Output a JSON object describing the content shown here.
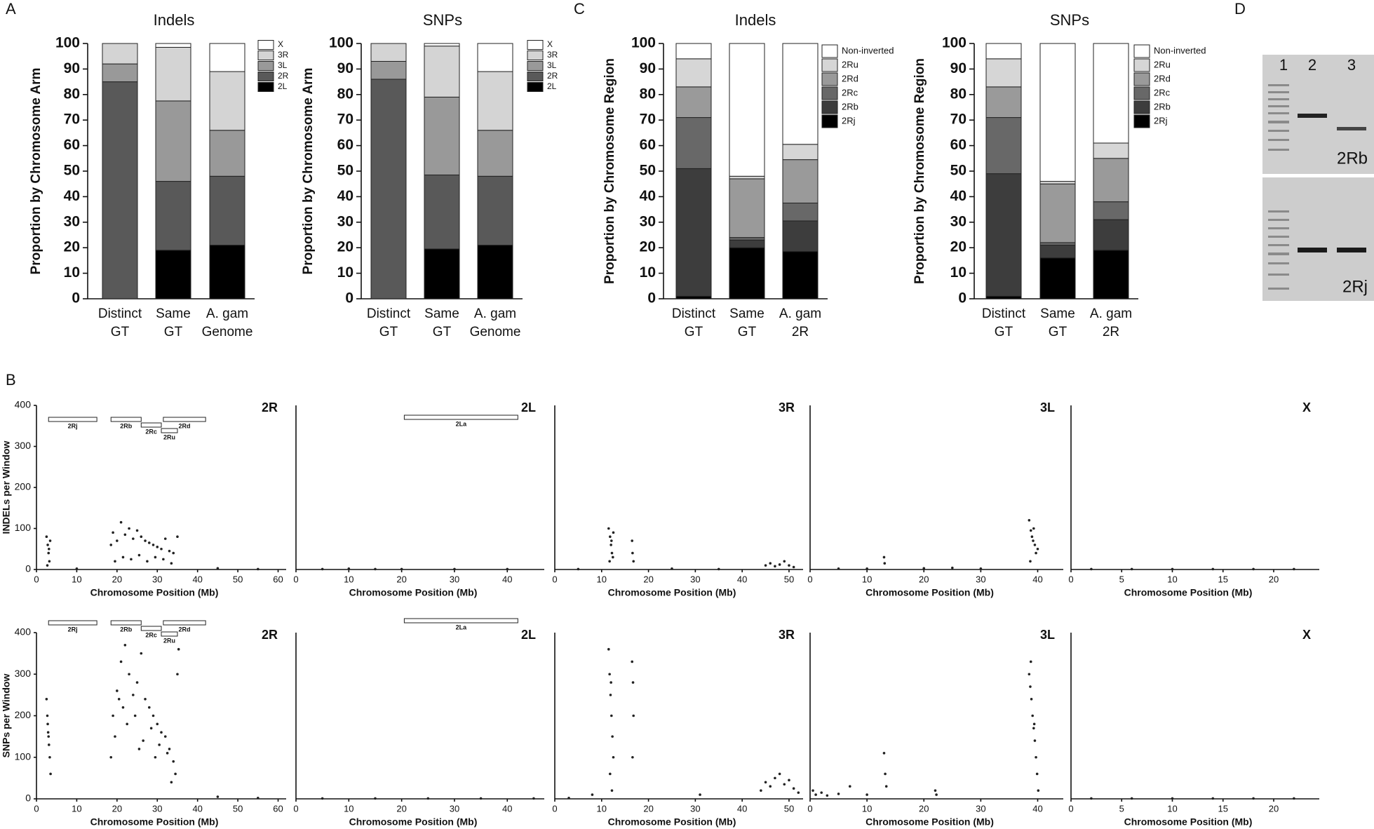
{
  "panel_labels": [
    "A",
    "B",
    "C",
    "D"
  ],
  "gel": {
    "lanes": [
      "1",
      "2",
      "3"
    ],
    "labels": [
      "2Rb",
      "2Rj"
    ]
  },
  "chart_data": [
    {
      "type": "stack",
      "title": "Indels",
      "y_label": "Proportion by Chromosome Arm",
      "ylim": [
        0,
        100
      ],
      "yticks": [
        0,
        10,
        20,
        30,
        40,
        50,
        60,
        70,
        80,
        90,
        100
      ],
      "categories": [
        [
          "Distinct",
          "GT"
        ],
        [
          "Same",
          "GT"
        ],
        [
          "A. gam",
          "Genome"
        ]
      ],
      "series": [
        {
          "name": "2L",
          "color": "#000000",
          "values": [
            0,
            19,
            21
          ]
        },
        {
          "name": "2R",
          "color": "#595959",
          "values": [
            85,
            27,
            27
          ]
        },
        {
          "name": "3L",
          "color": "#999999",
          "values": [
            7,
            31.5,
            18
          ]
        },
        {
          "name": "3R",
          "color": "#d4d4d4",
          "values": [
            8,
            21,
            23
          ]
        },
        {
          "name": "X",
          "color": "#ffffff",
          "values": [
            0,
            1.5,
            11
          ]
        }
      ]
    },
    {
      "type": "stack",
      "title": "SNPs",
      "y_label": "Proportion by Chromosome Arm",
      "ylim": [
        0,
        100
      ],
      "yticks": [
        0,
        10,
        20,
        30,
        40,
        50,
        60,
        70,
        80,
        90,
        100
      ],
      "categories": [
        [
          "Distinct",
          "GT"
        ],
        [
          "Same",
          "GT"
        ],
        [
          "A. gam",
          "Genome"
        ]
      ],
      "series": [
        {
          "name": "2L",
          "color": "#000000",
          "values": [
            0,
            19.5,
            21
          ]
        },
        {
          "name": "2R",
          "color": "#595959",
          "values": [
            86,
            29,
            27
          ]
        },
        {
          "name": "3L",
          "color": "#999999",
          "values": [
            7,
            30.5,
            18
          ]
        },
        {
          "name": "3R",
          "color": "#d4d4d4",
          "values": [
            7,
            20,
            23
          ]
        },
        {
          "name": "X",
          "color": "#ffffff",
          "values": [
            0,
            1,
            11
          ]
        }
      ]
    },
    {
      "type": "stack",
      "title": "Indels",
      "y_label": "Proportion by Chromosome Region",
      "ylim": [
        0,
        100
      ],
      "yticks": [
        0,
        10,
        20,
        30,
        40,
        50,
        60,
        70,
        80,
        90,
        100
      ],
      "categories": [
        [
          "Distinct",
          "GT"
        ],
        [
          "Same",
          "GT"
        ],
        [
          "A. gam",
          "2R"
        ]
      ],
      "series": [
        {
          "name": "2Rj",
          "color": "#000000",
          "values": [
            1,
            20,
            18.5
          ]
        },
        {
          "name": "2Rb",
          "color": "#3d3d3d",
          "values": [
            50,
            3,
            12
          ]
        },
        {
          "name": "2Rc",
          "color": "#686868",
          "values": [
            20,
            1,
            7
          ]
        },
        {
          "name": "2Rd",
          "color": "#9a9a9a",
          "values": [
            12,
            23,
            17
          ]
        },
        {
          "name": "2Ru",
          "color": "#d6d6d6",
          "values": [
            11,
            1,
            6
          ]
        },
        {
          "name": "Non-inverted",
          "color": "#ffffff",
          "values": [
            6,
            52,
            39.5
          ]
        }
      ]
    },
    {
      "type": "stack",
      "title": "SNPs",
      "y_label": "Proportion by Chromosome Region",
      "ylim": [
        0,
        100
      ],
      "yticks": [
        0,
        10,
        20,
        30,
        40,
        50,
        60,
        70,
        80,
        90,
        100
      ],
      "categories": [
        [
          "Distinct",
          "GT"
        ],
        [
          "Same",
          "GT"
        ],
        [
          "A. gam",
          "2R"
        ]
      ],
      "series": [
        {
          "name": "2Rj",
          "color": "#000000",
          "values": [
            1,
            16,
            19
          ]
        },
        {
          "name": "2Rb",
          "color": "#3d3d3d",
          "values": [
            48,
            5,
            12
          ]
        },
        {
          "name": "2Rc",
          "color": "#686868",
          "values": [
            22,
            1,
            7
          ]
        },
        {
          "name": "2Rd",
          "color": "#9a9a9a",
          "values": [
            12,
            23,
            17
          ]
        },
        {
          "name": "2Ru",
          "color": "#d6d6d6",
          "values": [
            11,
            1,
            6
          ]
        },
        {
          "name": "Non-inverted",
          "color": "#ffffff",
          "values": [
            6,
            54,
            39
          ]
        }
      ]
    },
    {
      "type": "scatter",
      "title": "2R",
      "x_label": "Chromosome Position (Mb)",
      "y_label": "INDELs per Window",
      "xlim": [
        0,
        62
      ],
      "xticks": [
        0,
        10,
        20,
        30,
        40,
        50,
        60
      ],
      "ylim": [
        0,
        400
      ],
      "yticks": [
        0,
        100,
        200,
        300,
        400
      ],
      "annotations": [
        {
          "label": "2Rj",
          "start": 3,
          "end": 15
        },
        {
          "label": "2Rb",
          "start": 18.5,
          "end": 26
        },
        {
          "label": "2Rc",
          "start": 26,
          "end": 31
        },
        {
          "label": "2Ru",
          "start": 31,
          "end": 35
        },
        {
          "label": "2Rd",
          "start": 31.5,
          "end": 42
        }
      ],
      "x": [
        2.5,
        2.8,
        3.0,
        3.2,
        3.4,
        2.7,
        3.1,
        18.5,
        19,
        20,
        21,
        22,
        23,
        24,
        25,
        26,
        27,
        28,
        29,
        30,
        31,
        32,
        33,
        34,
        35,
        19.5,
        21.5,
        23.5,
        25.5,
        27.5,
        29.5,
        31.5,
        33.5,
        10,
        45,
        55
      ],
      "values": [
        80,
        60,
        40,
        20,
        70,
        10,
        50,
        60,
        90,
        70,
        115,
        85,
        100,
        75,
        95,
        80,
        70,
        65,
        60,
        55,
        50,
        75,
        45,
        40,
        80,
        20,
        30,
        25,
        35,
        20,
        30,
        25,
        15,
        2,
        3,
        1
      ]
    },
    {
      "type": "scatter",
      "title": "2L",
      "x_label": "Chromosome Position (Mb)",
      "xlim": [
        0,
        47
      ],
      "xticks": [
        0,
        10,
        20,
        30,
        40
      ],
      "ylim": [
        0,
        400
      ],
      "annotations": [
        {
          "label": "2La",
          "start": 20.5,
          "end": 42
        }
      ],
      "x": [
        5,
        10,
        15,
        20,
        30,
        40
      ],
      "values": [
        1,
        2,
        1,
        1,
        1,
        1
      ]
    },
    {
      "type": "scatter",
      "title": "3R",
      "x_label": "Chromosome Position (Mb)",
      "xlim": [
        0,
        53
      ],
      "xticks": [
        0,
        10,
        20,
        30,
        40,
        50
      ],
      "ylim": [
        0,
        400
      ],
      "x": [
        11.5,
        11.8,
        12,
        12.2,
        12.5,
        11.7,
        12.1,
        12.4,
        16.5,
        16.6,
        16.8,
        45,
        46,
        47,
        48,
        49,
        50,
        51,
        5,
        25,
        35
      ],
      "values": [
        100,
        80,
        60,
        40,
        90,
        20,
        70,
        30,
        70,
        40,
        20,
        10,
        15,
        8,
        12,
        20,
        10,
        6,
        1,
        2,
        1
      ]
    },
    {
      "type": "scatter",
      "title": "3L",
      "x_label": "Chromosome Position (Mb)",
      "xlim": [
        0,
        44.5
      ],
      "xticks": [
        0,
        10,
        20,
        30,
        40
      ],
      "ylim": [
        0,
        400
      ],
      "x": [
        13,
        13.1,
        38.5,
        38.8,
        39,
        39.2,
        39.5,
        39.7,
        40,
        38.7,
        39.3,
        5,
        10,
        20,
        25,
        30
      ],
      "values": [
        30,
        15,
        120,
        95,
        80,
        70,
        60,
        40,
        50,
        20,
        100,
        2,
        2,
        3,
        4,
        2
      ]
    },
    {
      "type": "scatter",
      "title": "X",
      "x_label": "Chromosome Position (Mb)",
      "xlim": [
        0,
        24.5
      ],
      "xticks": [
        0,
        5,
        10,
        15,
        20
      ],
      "ylim": [
        0,
        400
      ],
      "x": [
        2,
        6,
        10,
        14,
        18,
        22
      ],
      "values": [
        1,
        1,
        1,
        1,
        1,
        1
      ]
    },
    {
      "type": "scatter",
      "title": "2R",
      "x_label": "Chromosome Position (Mb)",
      "y_label": "SNPs per Window",
      "xlim": [
        0,
        62
      ],
      "xticks": [
        0,
        10,
        20,
        30,
        40,
        50,
        60
      ],
      "ylim": [
        0,
        400
      ],
      "yticks": [
        0,
        100,
        200,
        300,
        400
      ],
      "annotations": [
        {
          "label": "2Rj",
          "start": 3,
          "end": 15
        },
        {
          "label": "2Rb",
          "start": 18.5,
          "end": 26
        },
        {
          "label": "2Rc",
          "start": 26,
          "end": 31
        },
        {
          "label": "2Ru",
          "start": 31,
          "end": 35
        },
        {
          "label": "2Rd",
          "start": 31.5,
          "end": 42
        }
      ],
      "x": [
        2.5,
        2.7,
        2.9,
        3.1,
        3.3,
        3.5,
        2.8,
        3.0,
        18.5,
        19,
        20,
        21,
        22,
        23,
        24,
        25,
        26,
        27,
        28,
        29,
        30,
        31,
        32,
        33,
        34,
        35,
        19.5,
        20.5,
        22.5,
        24.5,
        26.5,
        28.5,
        30.5,
        32.5,
        34.5,
        21.5,
        25.5,
        29.5,
        33.5,
        35.3,
        45,
        55
      ],
      "values": [
        240,
        200,
        160,
        130,
        100,
        60,
        180,
        150,
        100,
        200,
        260,
        330,
        370,
        300,
        250,
        280,
        350,
        240,
        220,
        200,
        180,
        160,
        150,
        120,
        90,
        300,
        150,
        240,
        180,
        200,
        140,
        170,
        130,
        110,
        60,
        220,
        120,
        100,
        40,
        360,
        5,
        2
      ]
    },
    {
      "type": "scatter",
      "title": "2L",
      "x_label": "Chromosome Position (Mb)",
      "xlim": [
        0,
        47
      ],
      "xticks": [
        0,
        10,
        20,
        30,
        40
      ],
      "ylim": [
        0,
        400
      ],
      "annotations": [
        {
          "label": "2La",
          "start": 20.5,
          "end": 42
        }
      ],
      "x": [
        5,
        15,
        25,
        35,
        45
      ],
      "values": [
        1,
        1,
        1,
        1,
        1
      ]
    },
    {
      "type": "scatter",
      "title": "3R",
      "x_label": "Chromosome Position (Mb)",
      "xlim": [
        0,
        53
      ],
      "xticks": [
        0,
        10,
        20,
        30,
        40,
        50
      ],
      "ylim": [
        0,
        400
      ],
      "x": [
        11.5,
        11.7,
        11.9,
        12.1,
        12.3,
        12.5,
        11.8,
        12.2,
        12.0,
        16.5,
        16.7,
        16.8,
        16.6,
        44,
        45,
        46,
        47,
        48,
        49,
        50,
        51,
        52,
        8,
        31,
        3
      ],
      "values": [
        360,
        300,
        250,
        200,
        150,
        100,
        60,
        20,
        280,
        330,
        280,
        200,
        100,
        20,
        40,
        30,
        50,
        60,
        35,
        45,
        25,
        15,
        10,
        10,
        2
      ]
    },
    {
      "type": "scatter",
      "title": "3L",
      "x_label": "Chromosome Position (Mb)",
      "xlim": [
        0,
        44.5
      ],
      "xticks": [
        0,
        10,
        20,
        30,
        40
      ],
      "ylim": [
        0,
        400
      ],
      "x": [
        0.5,
        1,
        2,
        3,
        5,
        7,
        10,
        13,
        13.2,
        13.4,
        22,
        22.2,
        38.5,
        38.7,
        38.9,
        39.1,
        39.3,
        39.5,
        39.7,
        39.9,
        40.1,
        38.8,
        39.4
      ],
      "values": [
        20,
        10,
        15,
        8,
        12,
        30,
        10,
        110,
        60,
        30,
        20,
        10,
        300,
        270,
        240,
        200,
        170,
        140,
        100,
        60,
        20,
        330,
        180
      ]
    },
    {
      "type": "scatter",
      "title": "X",
      "x_label": "Chromosome Position (Mb)",
      "xlim": [
        0,
        24.5
      ],
      "xticks": [
        0,
        5,
        10,
        15,
        20
      ],
      "ylim": [
        0,
        400
      ],
      "x": [
        2,
        6,
        10,
        14,
        18,
        22
      ],
      "values": [
        1,
        1,
        1,
        1,
        1,
        1
      ]
    }
  ]
}
